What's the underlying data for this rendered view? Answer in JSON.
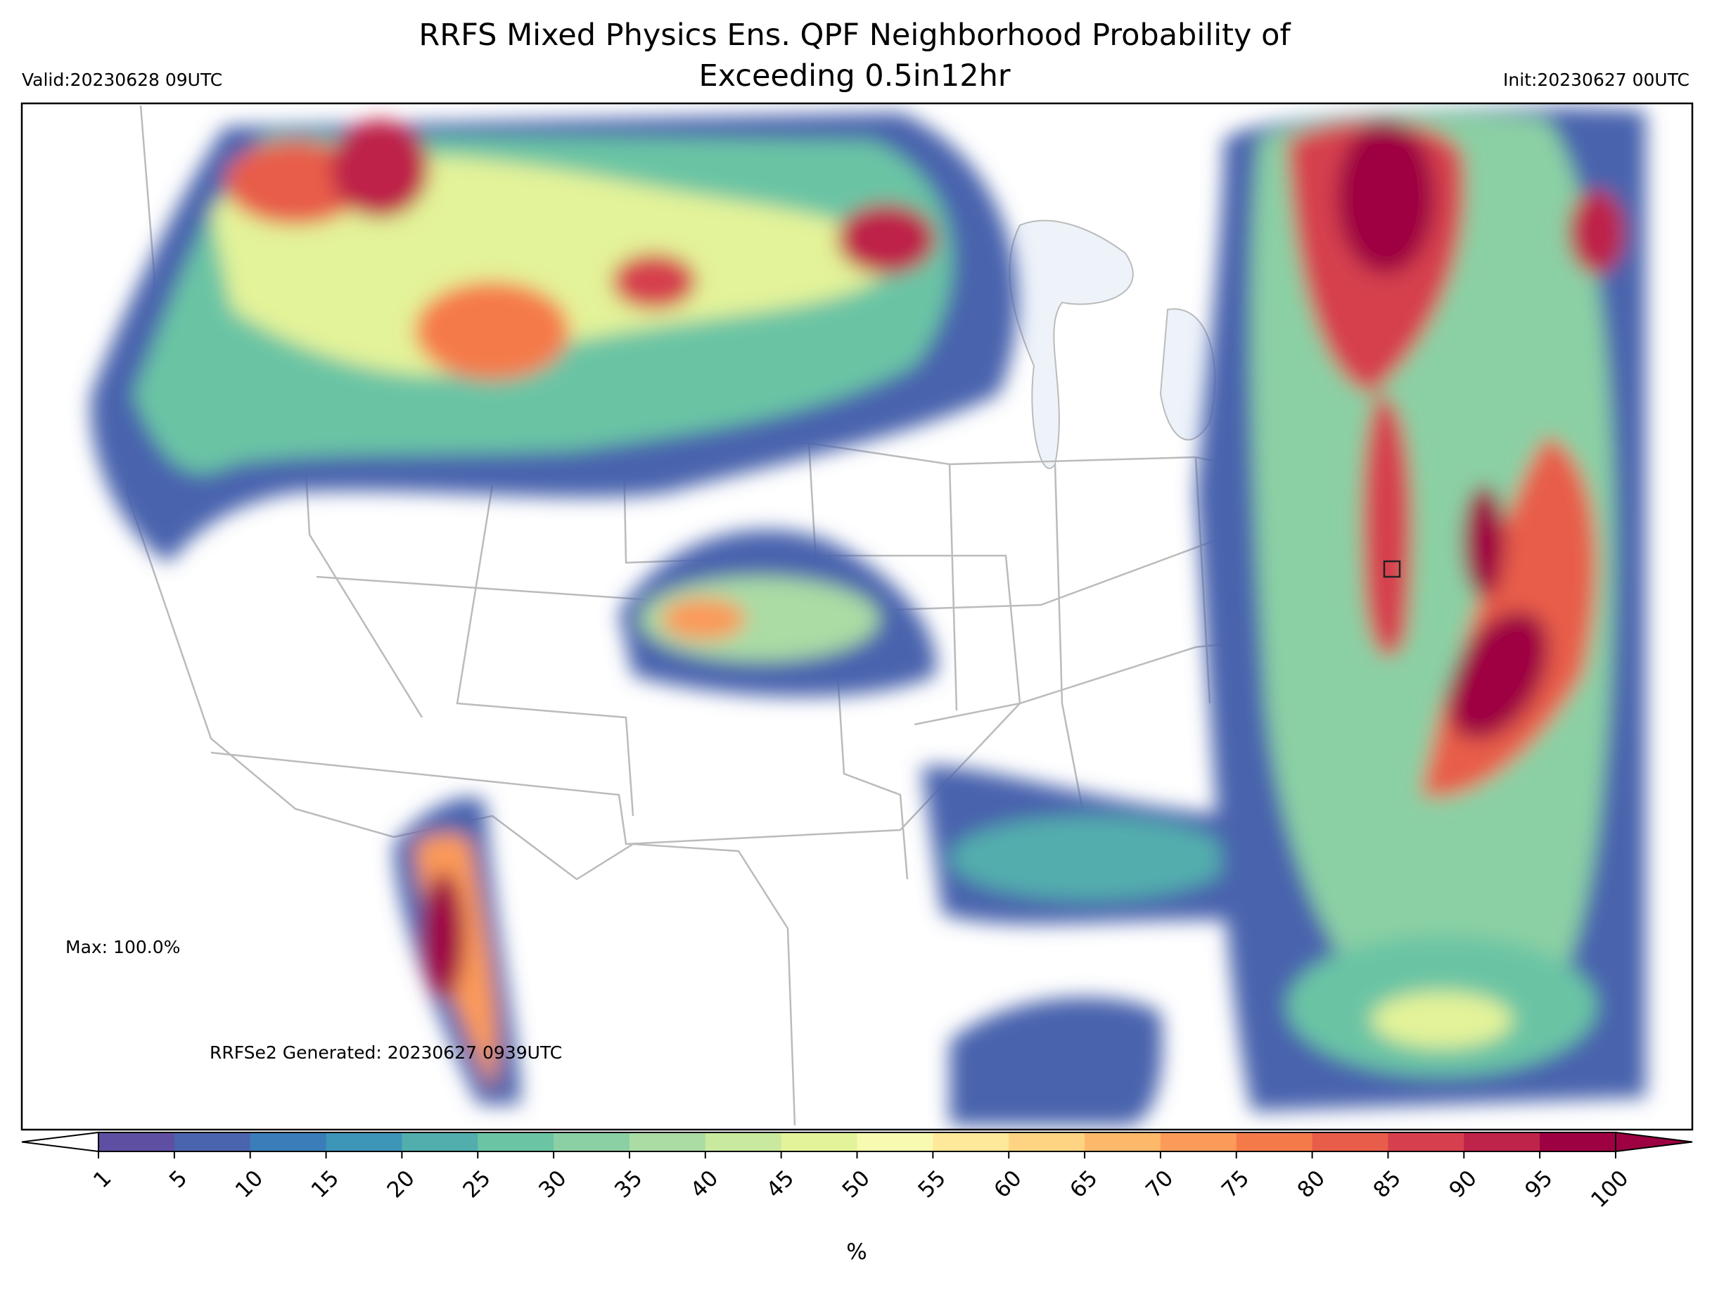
{
  "header": {
    "title_lines": [
      "RRFS Mixed Physics Ens. QPF Neighborhood Probability of",
      "Exceeding 0.5in12hr"
    ],
    "valid": "Valid:20230628 09UTC",
    "init": "Init:20230627 00UTC"
  },
  "annotations": {
    "max": "Max: 100.0%",
    "generated": "RRFSe2 Generated: 20230627 0939UTC"
  },
  "colorbar": {
    "label": "%",
    "ticks": [
      1,
      5,
      10,
      15,
      20,
      25,
      30,
      35,
      40,
      45,
      50,
      55,
      60,
      65,
      70,
      75,
      80,
      85,
      90,
      95,
      100
    ],
    "colors": [
      "#5e4fa2",
      "#4a64ad",
      "#3a7db8",
      "#3d95b8",
      "#52adad",
      "#6bc4a4",
      "#8bd0a4",
      "#aadca4",
      "#c8e99e",
      "#e3f399",
      "#f7fbb1",
      "#fee89a",
      "#fed482",
      "#fdb869",
      "#fb9a59",
      "#f57a4a",
      "#e85d4a",
      "#d6404e",
      "#be2449",
      "#9e0142"
    ]
  }
}
